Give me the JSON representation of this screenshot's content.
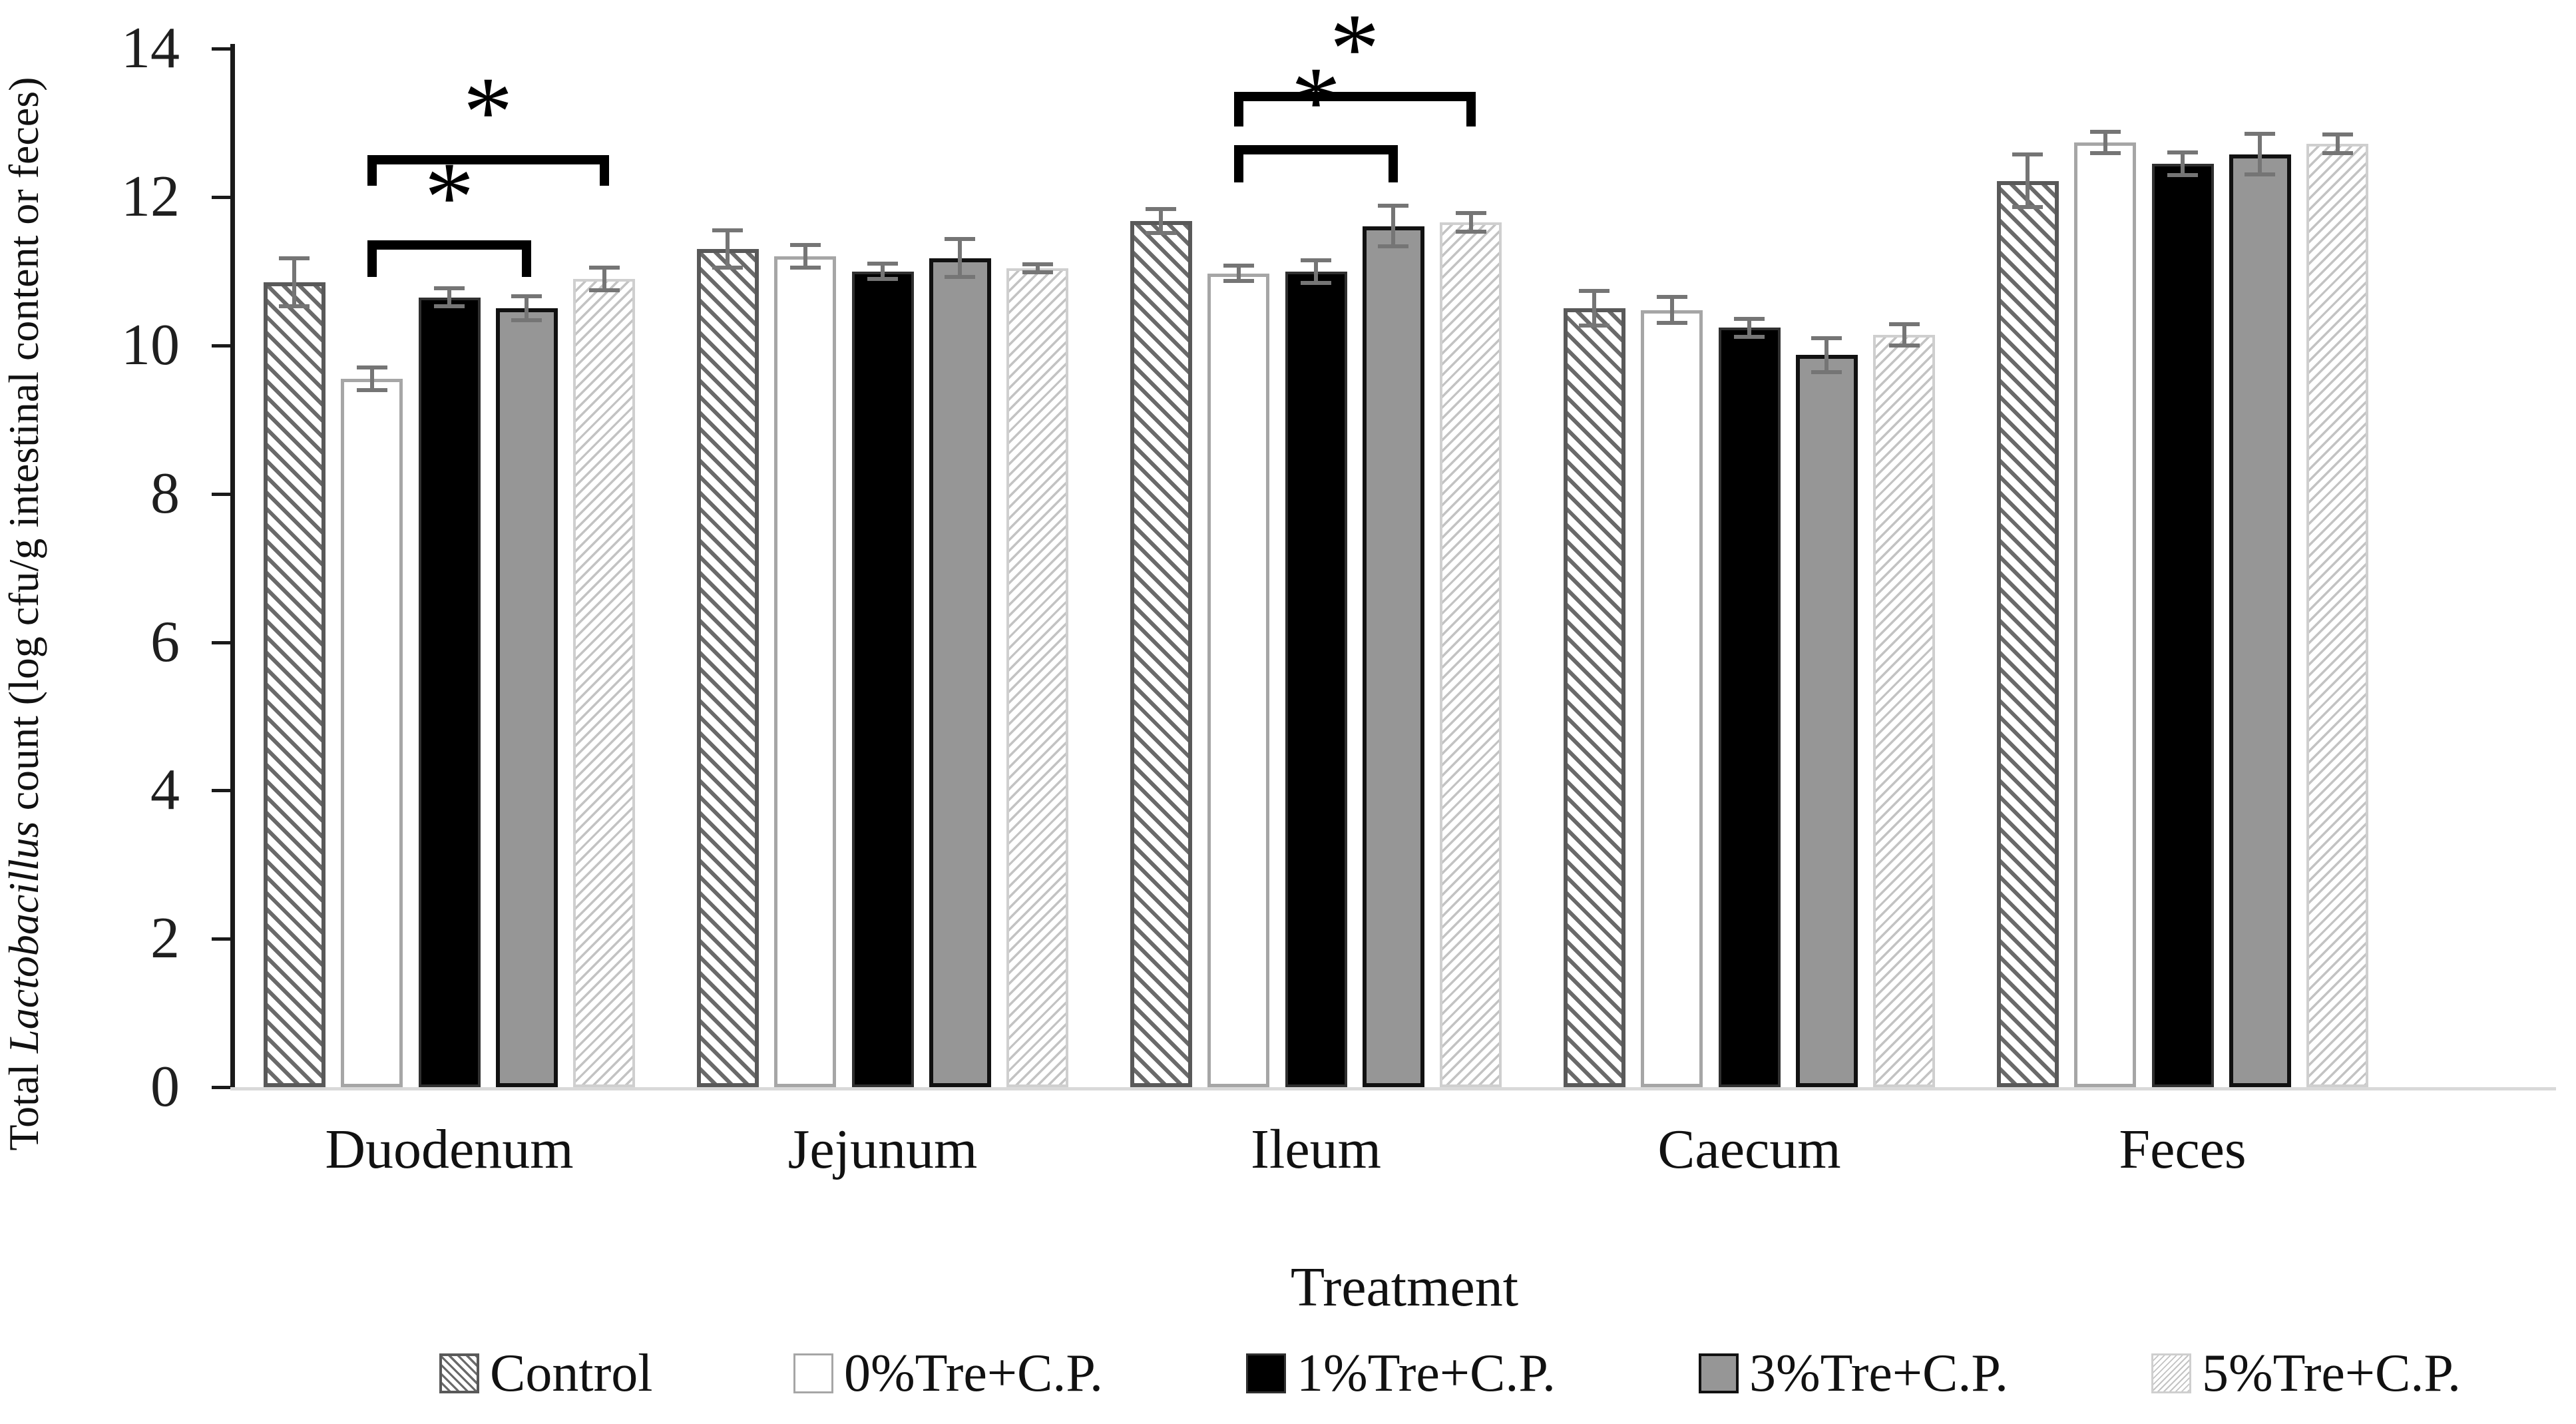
{
  "chart_data": {
    "type": "bar",
    "title": "",
    "xlabel": "Treatment",
    "ylabel": {
      "prefix": "Total ",
      "italic": "Lactobacillus",
      "suffix": " count (log cfu/g intestinal content or feces)"
    },
    "ylim": [
      0,
      14
    ],
    "yticks": [
      0,
      2,
      4,
      6,
      8,
      10,
      12,
      14
    ],
    "grid": false,
    "legend_position": "bottom",
    "axis_color": "#1a1a1a",
    "baseline_color": "#d9d9d9",
    "error_bar_color": "#757575",
    "bracket_color": "#000000",
    "categories": [
      "Duodenum",
      "Jejunum",
      "Ileum",
      "Caecum",
      "Feces"
    ],
    "series": [
      {
        "name": "Control",
        "pattern": "hatch-heavy",
        "fill": "#ffffff",
        "stripe": "#6a6a6a",
        "border": "#595959",
        "border_width": 6,
        "values": [
          10.85,
          11.3,
          11.68,
          10.5,
          12.22
        ],
        "errors": [
          0.35,
          0.28,
          0.19,
          0.26,
          0.38
        ]
      },
      {
        "name": "0%Tre+C.P.",
        "pattern": "solid",
        "fill": "#ffffff",
        "stripe": "#ffffff",
        "border": "#a6a6a6",
        "border_width": 5,
        "values": [
          9.55,
          11.2,
          10.97,
          10.48,
          12.74
        ],
        "errors": [
          0.18,
          0.18,
          0.13,
          0.2,
          0.17
        ]
      },
      {
        "name": "1%Tre+C.P.",
        "pattern": "solid",
        "fill": "#000000",
        "stripe": "#000000",
        "border": "#303030",
        "border_width": 4,
        "values": [
          10.65,
          11.0,
          11.0,
          10.24,
          12.45
        ],
        "errors": [
          0.15,
          0.13,
          0.18,
          0.15,
          0.18
        ]
      },
      {
        "name": "3%Tre+C.P.",
        "pattern": "solid",
        "fill": "#969696",
        "stripe": "#969696",
        "border": "#111111",
        "border_width": 6,
        "values": [
          10.5,
          11.18,
          11.61,
          9.87,
          12.58
        ],
        "errors": [
          0.19,
          0.28,
          0.3,
          0.26,
          0.3
        ]
      },
      {
        "name": "5%Tre+C.P.",
        "pattern": "hatch-light",
        "fill": "#ffffff",
        "stripe": "#c3c3c3",
        "border": "#cfcfcf",
        "border_width": 4,
        "values": [
          10.9,
          11.04,
          11.66,
          10.14,
          12.72
        ],
        "errors": [
          0.18,
          0.08,
          0.15,
          0.17,
          0.15
        ]
      }
    ],
    "significance_brackets": [
      {
        "category_index": 0,
        "from_series": 1,
        "to_series": 3,
        "y": 11.42,
        "drop": 0.5,
        "label": "*"
      },
      {
        "category_index": 0,
        "from_series": 1,
        "to_series": 4,
        "y": 12.57,
        "drop": 0.42,
        "label": "*"
      },
      {
        "category_index": 2,
        "from_series": 1,
        "to_series": 3,
        "y": 12.7,
        "drop": 0.5,
        "label": "*"
      },
      {
        "category_index": 2,
        "from_series": 1,
        "to_series": 4,
        "y": 13.42,
        "drop": 0.47,
        "label": "*"
      }
    ]
  }
}
